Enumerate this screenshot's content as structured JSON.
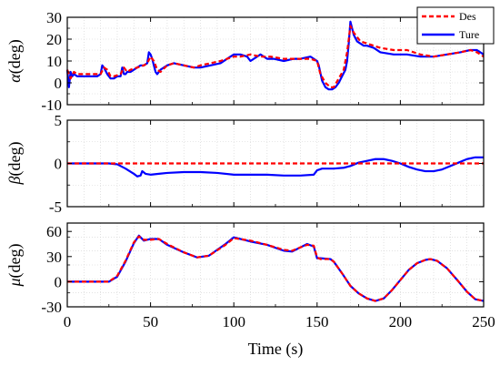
{
  "chart_data": [
    {
      "type": "line",
      "ylabel_symbol": "α",
      "ylabel_unit": "(deg)",
      "ylim": [
        -10,
        30
      ],
      "yticks": [
        "-10",
        "0",
        "10",
        "20",
        "30"
      ],
      "ytick_values": [
        -10,
        0,
        10,
        20,
        30
      ],
      "xlim": [
        0,
        250
      ],
      "grid": true,
      "legend": {
        "position": "top-right",
        "entries": [
          "Des",
          "Ture"
        ]
      },
      "series": [
        {
          "name": "Des",
          "color": "#ff0000",
          "style": "dashed",
          "x": [
            0,
            2,
            4,
            6,
            10,
            14,
            18,
            20,
            22,
            24,
            26,
            28,
            32,
            34,
            36,
            38,
            42,
            46,
            48,
            50,
            52,
            54,
            56,
            60,
            64,
            70,
            76,
            80,
            86,
            92,
            96,
            100,
            104,
            110,
            116,
            122,
            130,
            140,
            146,
            150,
            152,
            155,
            158,
            160,
            163,
            166,
            168,
            170,
            172,
            176,
            180,
            188,
            196,
            204,
            212,
            220,
            228,
            236,
            242,
            246,
            250
          ],
          "y": [
            6,
            2,
            5,
            4,
            4,
            4,
            4,
            4,
            7,
            6,
            3,
            3,
            4,
            7,
            5,
            6,
            7,
            8,
            9,
            12,
            10,
            6,
            5,
            8,
            9,
            8,
            7,
            8,
            9,
            10,
            11,
            12,
            12,
            13,
            12,
            12,
            11,
            11,
            11,
            10,
            4,
            0,
            -2,
            -2,
            2,
            6,
            14,
            26,
            23,
            19,
            18,
            16,
            15,
            15,
            13,
            12,
            13,
            14,
            15,
            14,
            12
          ]
        },
        {
          "name": "Ture",
          "color": "#0000ff",
          "style": "solid",
          "x": [
            0,
            1,
            2,
            3,
            4,
            6,
            10,
            14,
            18,
            20,
            21,
            22,
            24,
            26,
            28,
            30,
            32,
            33,
            34,
            35,
            36,
            38,
            40,
            42,
            44,
            46,
            48,
            49,
            50,
            51,
            52,
            53,
            54,
            56,
            60,
            64,
            70,
            76,
            80,
            86,
            92,
            96,
            100,
            104,
            108,
            110,
            114,
            116,
            120,
            124,
            130,
            136,
            140,
            146,
            150,
            151,
            153,
            155,
            157,
            159,
            161,
            163,
            165,
            167,
            168,
            169,
            170,
            171,
            172,
            174,
            176,
            178,
            180,
            184,
            188,
            196,
            204,
            212,
            220,
            228,
            236,
            242,
            246,
            250
          ],
          "y": [
            6,
            -2,
            5,
            3,
            4,
            3,
            3,
            3,
            3,
            4,
            8,
            7,
            4,
            2,
            2,
            3,
            3,
            7,
            4,
            4,
            5,
            5,
            6,
            7,
            8,
            8,
            9,
            14,
            13,
            11,
            8,
            5,
            4,
            6,
            8,
            9,
            8,
            7,
            7,
            8,
            9,
            11,
            13,
            13,
            12,
            10,
            12,
            13,
            11,
            11,
            10,
            11,
            11,
            12,
            10,
            8,
            1,
            -2,
            -3,
            -3,
            -2,
            0,
            3,
            6,
            10,
            18,
            28,
            25,
            22,
            19,
            18,
            17,
            17,
            16,
            14,
            13,
            13,
            12,
            12,
            13,
            14,
            15,
            15,
            13
          ]
        }
      ]
    },
    {
      "type": "line",
      "ylabel_symbol": "β",
      "ylabel_unit": "(deg)",
      "ylim": [
        -5,
        5
      ],
      "yticks": [
        "-5",
        "0",
        "5"
      ],
      "ytick_values": [
        -5,
        0,
        5
      ],
      "xlim": [
        0,
        250
      ],
      "grid": true,
      "series": [
        {
          "name": "Des",
          "color": "#ff0000",
          "style": "dashed",
          "x": [
            0,
            250
          ],
          "y": [
            0,
            0
          ]
        },
        {
          "name": "Ture",
          "color": "#0000ff",
          "style": "solid",
          "x": [
            0,
            25,
            30,
            35,
            40,
            42,
            44,
            45,
            47,
            50,
            55,
            60,
            70,
            80,
            90,
            100,
            110,
            120,
            130,
            140,
            148,
            150,
            153,
            160,
            166,
            170,
            175,
            180,
            185,
            190,
            195,
            200,
            205,
            210,
            215,
            220,
            225,
            230,
            235,
            240,
            245,
            250
          ],
          "y": [
            0,
            0,
            -0.1,
            -0.6,
            -1.2,
            -1.5,
            -1.4,
            -0.9,
            -1.2,
            -1.3,
            -1.2,
            -1.1,
            -1.0,
            -1.0,
            -1.1,
            -1.3,
            -1.3,
            -1.3,
            -1.4,
            -1.4,
            -1.3,
            -0.8,
            -0.6,
            -0.6,
            -0.5,
            -0.3,
            0.1,
            0.3,
            0.5,
            0.5,
            0.3,
            0,
            -0.4,
            -0.7,
            -0.9,
            -0.9,
            -0.7,
            -0.3,
            0.1,
            0.5,
            0.7,
            0.7
          ]
        }
      ]
    },
    {
      "type": "line",
      "ylabel_symbol": "μ",
      "ylabel_unit": "(deg)",
      "ylim": [
        -30,
        70
      ],
      "yticks": [
        "-30",
        "0",
        "30",
        "60"
      ],
      "ytick_values": [
        -30,
        0,
        30,
        60
      ],
      "xlim": [
        0,
        250
      ],
      "xticks": [
        "0",
        "50",
        "100",
        "150",
        "200",
        "250"
      ],
      "xtick_values": [
        0,
        50,
        100,
        150,
        200,
        250
      ],
      "xlabel": "Time (s)",
      "grid": true,
      "series": [
        {
          "name": "Des",
          "color": "#ff0000",
          "style": "dashed",
          "x": [
            0,
            25,
            30,
            35,
            40,
            43,
            46,
            50,
            55,
            60,
            70,
            78,
            85,
            95,
            100,
            110,
            120,
            130,
            135,
            140,
            144,
            148,
            150,
            152,
            158,
            160,
            165,
            170,
            175,
            180,
            185,
            190,
            195,
            200,
            205,
            210,
            215,
            218,
            222,
            228,
            235,
            240,
            245,
            250
          ],
          "y": [
            0,
            0,
            7,
            25,
            47,
            54,
            50,
            50,
            51,
            45,
            35,
            29,
            31,
            44,
            52,
            49,
            44,
            38,
            37,
            41,
            44,
            43,
            29,
            27,
            27,
            24,
            10,
            -5,
            -14,
            -20,
            -23,
            -20,
            -10,
            2,
            14,
            22,
            26,
            27,
            25,
            16,
            0,
            -12,
            -21,
            -23
          ]
        },
        {
          "name": "Ture",
          "color": "#0000ff",
          "style": "solid",
          "x": [
            0,
            25,
            30,
            35,
            40,
            43,
            46,
            50,
            55,
            60,
            70,
            78,
            85,
            95,
            100,
            110,
            120,
            130,
            135,
            140,
            144,
            148,
            150,
            152,
            158,
            160,
            165,
            170,
            175,
            180,
            185,
            190,
            195,
            200,
            205,
            210,
            215,
            218,
            222,
            228,
            235,
            240,
            245,
            250
          ],
          "y": [
            0,
            0,
            6,
            24,
            46,
            55,
            49,
            51,
            51,
            44,
            35,
            29,
            31,
            45,
            53,
            48,
            44,
            37,
            36,
            41,
            45,
            42,
            28,
            28,
            27,
            24,
            10,
            -5,
            -14,
            -20,
            -23,
            -20,
            -10,
            2,
            14,
            22,
            26,
            27,
            25,
            16,
            0,
            -12,
            -21,
            -23
          ]
        }
      ]
    }
  ]
}
